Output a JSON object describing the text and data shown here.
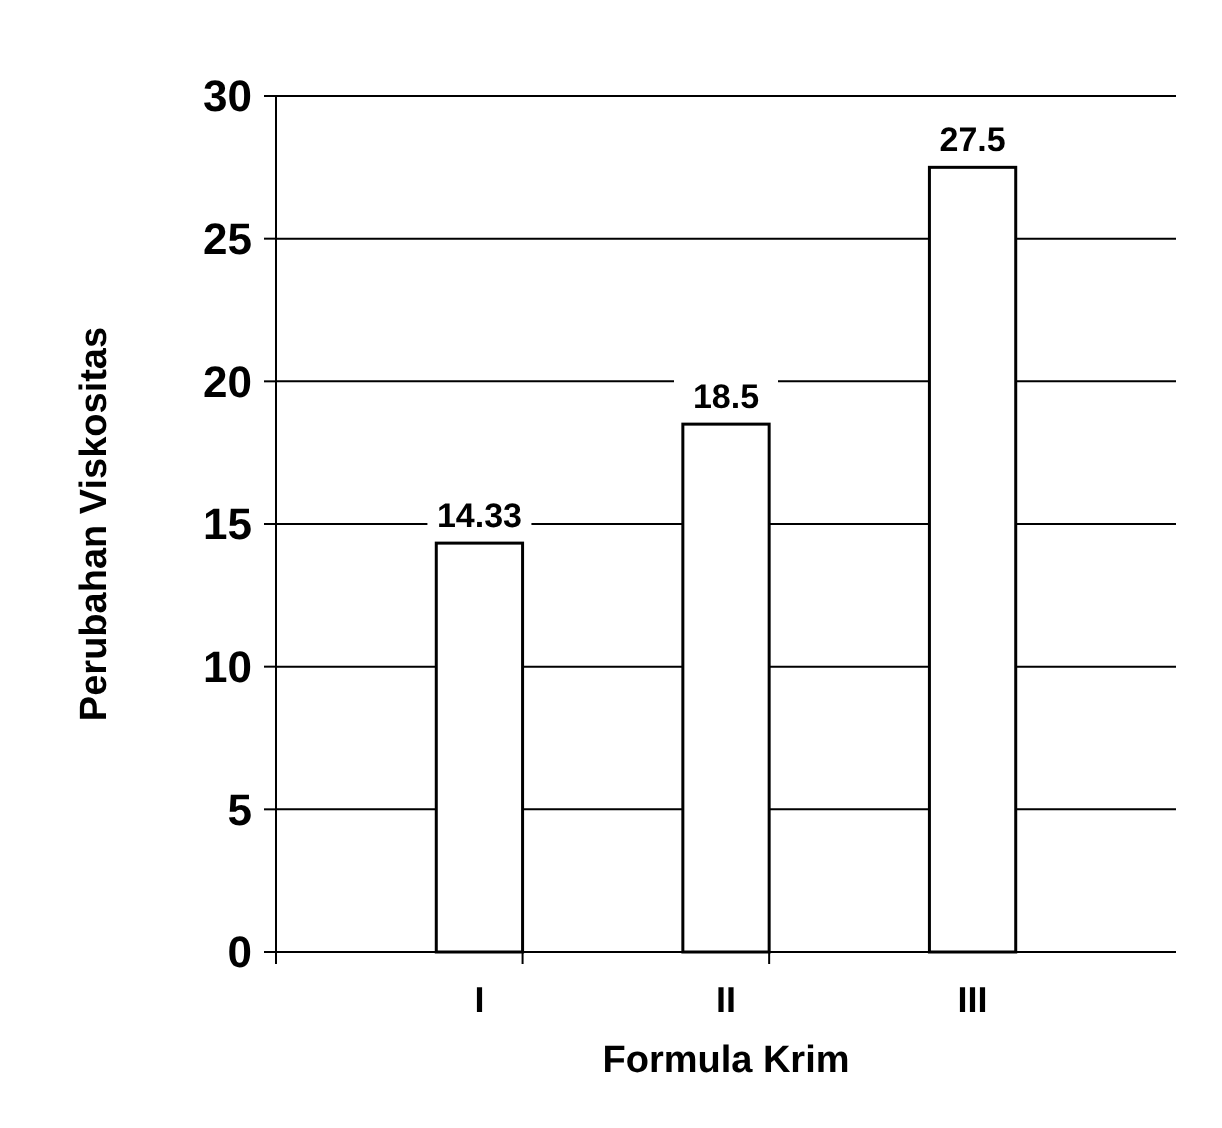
{
  "chart_data": {
    "type": "bar",
    "xlabel": "Formula Krim",
    "ylabel": "Perubahan Viskositas",
    "categories": [
      "I",
      "II",
      "III"
    ],
    "values": [
      14.33,
      18.5,
      27.5
    ],
    "color": "#ffffff",
    "ylim": [
      0,
      30
    ],
    "yticks": [
      0,
      5,
      10,
      15,
      20,
      25,
      30
    ],
    "grid": "y",
    "data_labels": true
  }
}
